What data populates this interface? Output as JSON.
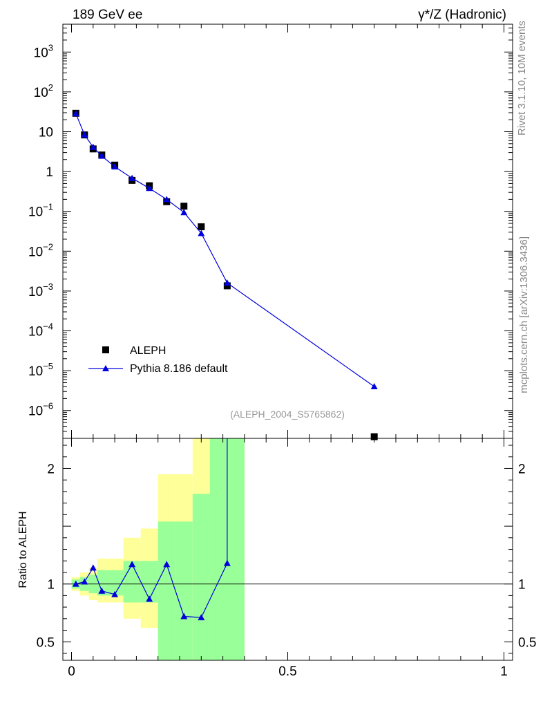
{
  "chart_data": [
    {
      "type": "scatter",
      "title_left": "189 GeV ee",
      "title_right": "γ*/Z (Hadronic)",
      "xlim": [
        -0.02,
        1.02
      ],
      "ylim": [
        2e-07,
        5000
      ],
      "y_scale": "log",
      "y_tick_labels": [
        {
          "v": 1000,
          "base": "10",
          "exp": "3"
        },
        {
          "v": 100,
          "base": "10",
          "exp": "2"
        },
        {
          "v": 10,
          "base": "10",
          "exp": ""
        },
        {
          "v": 1,
          "base": "1",
          "exp": ""
        },
        {
          "v": 0.1,
          "base": "10",
          "exp": "−1"
        },
        {
          "v": 0.01,
          "base": "10",
          "exp": "−2"
        },
        {
          "v": 0.001,
          "base": "10",
          "exp": "−3"
        },
        {
          "v": 0.0001,
          "base": "10",
          "exp": "−4"
        },
        {
          "v": 1e-05,
          "base": "10",
          "exp": "−5"
        },
        {
          "v": 1e-06,
          "base": "10",
          "exp": "−6"
        }
      ],
      "legend_position": "bottom-left",
      "series": [
        {
          "name": "ALEPH",
          "marker": "square",
          "color": "#000000",
          "x": [
            0.01,
            0.03,
            0.05,
            0.07,
            0.1,
            0.14,
            0.18,
            0.22,
            0.26,
            0.3,
            0.36,
            0.7
          ],
          "y": [
            29,
            8.3,
            3.7,
            2.6,
            1.45,
            0.6,
            0.44,
            0.175,
            0.135,
            0.041,
            0.00135,
            2.2e-07
          ]
        },
        {
          "name": "Pythia 8.186 default",
          "marker": "triangle",
          "color": "#0000dd",
          "x": [
            0.01,
            0.03,
            0.05,
            0.07,
            0.1,
            0.14,
            0.18,
            0.22,
            0.26,
            0.3,
            0.36,
            0.7
          ],
          "y": [
            28.5,
            8.4,
            4.1,
            2.45,
            1.32,
            0.68,
            0.38,
            0.2,
            0.094,
            0.028,
            0.0016,
            4e-06
          ]
        }
      ],
      "watermark": "(ALEPH_2004_S5765862)"
    },
    {
      "type": "line",
      "ylabel": "Ratio to ALEPH",
      "xlim": [
        -0.02,
        1.02
      ],
      "ylim": [
        0.34,
        2.26
      ],
      "x_tick_labels": [
        {
          "v": 0,
          "t": "0"
        },
        {
          "v": 0.5,
          "t": "0.5"
        },
        {
          "v": 1,
          "t": "1"
        }
      ],
      "y_tick_labels": [
        {
          "v": 2,
          "t": "2"
        },
        {
          "v": 1,
          "t": "1"
        },
        {
          "v": 0.5,
          "t": "0.5"
        }
      ],
      "reference_line": 1,
      "band_colors": {
        "inner": "#99ff99",
        "outer": "#ffff99"
      },
      "bands": [
        {
          "x0": 0.0,
          "x1": 0.02,
          "inner": [
            0.96,
            1.04
          ],
          "outer": [
            0.94,
            1.06
          ]
        },
        {
          "x0": 0.02,
          "x1": 0.04,
          "inner": [
            0.94,
            1.06
          ],
          "outer": [
            0.9,
            1.1
          ]
        },
        {
          "x0": 0.04,
          "x1": 0.06,
          "inner": [
            0.92,
            1.08
          ],
          "outer": [
            0.86,
            1.14
          ]
        },
        {
          "x0": 0.06,
          "x1": 0.08,
          "inner": [
            0.9,
            1.12
          ],
          "outer": [
            0.84,
            1.22
          ]
        },
        {
          "x0": 0.08,
          "x1": 0.12,
          "inner": [
            0.9,
            1.12
          ],
          "outer": [
            0.84,
            1.22
          ]
        },
        {
          "x0": 0.12,
          "x1": 0.16,
          "inner": [
            0.84,
            1.2
          ],
          "outer": [
            0.7,
            1.4
          ]
        },
        {
          "x0": 0.16,
          "x1": 0.2,
          "inner": [
            0.84,
            1.2
          ],
          "outer": [
            0.62,
            1.48
          ]
        },
        {
          "x0": 0.2,
          "x1": 0.24,
          "inner": [
            0.34,
            1.54
          ],
          "outer": [
            0.34,
            1.95
          ]
        },
        {
          "x0": 0.24,
          "x1": 0.28,
          "inner": [
            0.34,
            1.54
          ],
          "outer": [
            0.34,
            1.95
          ]
        },
        {
          "x0": 0.28,
          "x1": 0.32,
          "inner": [
            0.34,
            1.78
          ],
          "outer": [
            0.34,
            2.26
          ]
        },
        {
          "x0": 0.32,
          "x1": 0.4,
          "inner": [
            0.34,
            2.26
          ],
          "outer": [
            0.34,
            2.26
          ]
        }
      ],
      "x": [
        0.01,
        0.03,
        0.05,
        0.07,
        0.1,
        0.14,
        0.18,
        0.22,
        0.26,
        0.3,
        0.36
      ],
      "y": [
        1.0,
        1.02,
        1.14,
        0.94,
        0.91,
        1.17,
        0.87,
        1.17,
        0.72,
        0.71,
        1.18
      ],
      "color": "#0000dd"
    }
  ],
  "side_text": {
    "top": "Rivet 3.1.10,  10M events",
    "bottom": "mcplots.cern.ch [arXiv:1306.3436]"
  }
}
